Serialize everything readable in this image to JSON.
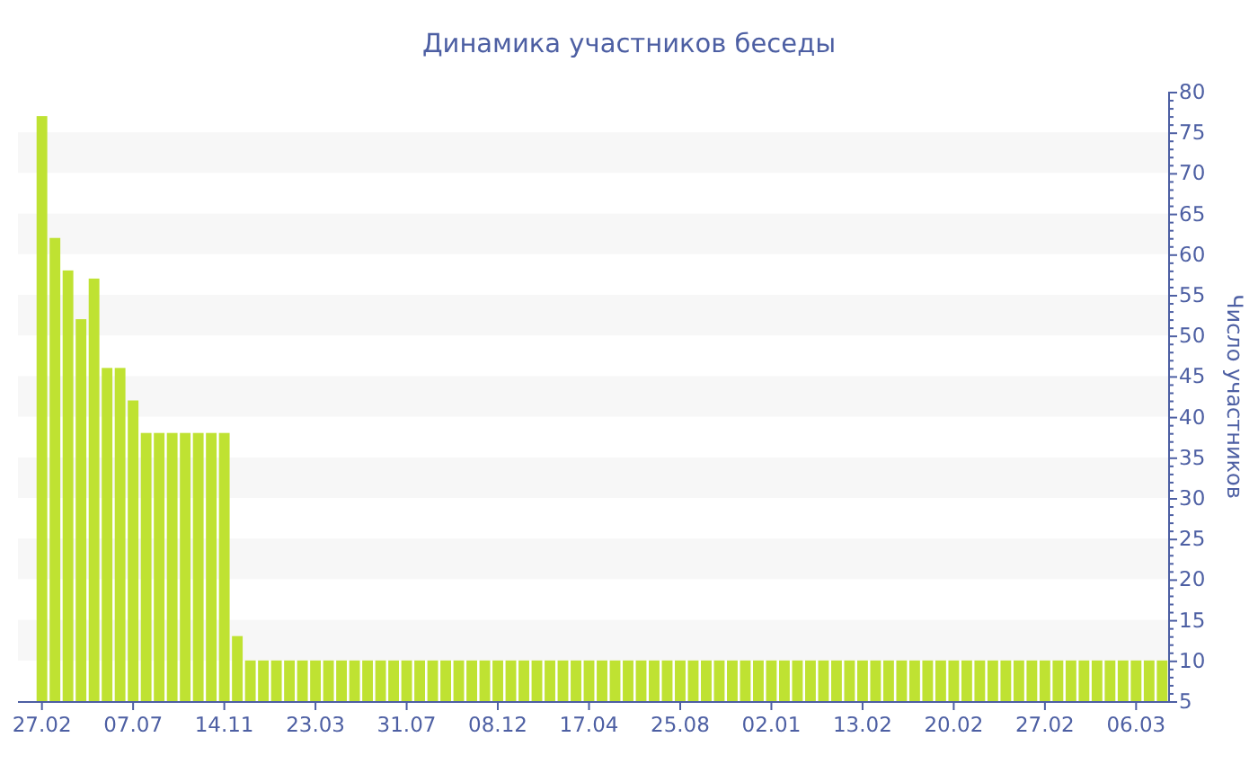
{
  "chart_data": {
    "type": "bar",
    "title": "Динамика участников беседы",
    "ylabel": "Число участников",
    "categories": [
      "27.02",
      null,
      null,
      null,
      null,
      null,
      null,
      "07.07",
      null,
      null,
      null,
      null,
      null,
      null,
      "14.11",
      null,
      null,
      null,
      null,
      null,
      null,
      "23.03",
      null,
      null,
      null,
      null,
      null,
      null,
      "31.07",
      null,
      null,
      null,
      null,
      null,
      null,
      "08.12",
      null,
      null,
      null,
      null,
      null,
      null,
      "17.04",
      null,
      null,
      null,
      null,
      null,
      null,
      "25.08",
      null,
      null,
      null,
      null,
      null,
      null,
      "02.01",
      null,
      null,
      null,
      null,
      null,
      null,
      "13.02",
      null,
      null,
      null,
      null,
      null,
      null,
      "20.02",
      null,
      null,
      null,
      null,
      null,
      null,
      "27.02",
      null,
      null,
      null,
      null,
      null,
      null,
      "06.03",
      null,
      null
    ],
    "values": [
      77,
      62,
      58,
      52,
      57,
      46,
      46,
      42,
      38,
      38,
      38,
      38,
      38,
      38,
      38,
      13,
      10,
      10,
      10,
      10,
      10,
      10,
      10,
      10,
      10,
      10,
      10,
      10,
      10,
      10,
      10,
      10,
      10,
      10,
      10,
      10,
      10,
      10,
      10,
      10,
      10,
      10,
      10,
      10,
      10,
      10,
      10,
      10,
      10,
      10,
      10,
      10,
      10,
      10,
      10,
      10,
      10,
      10,
      10,
      10,
      10,
      10,
      10,
      10,
      10,
      10,
      10,
      10,
      10,
      10,
      10,
      10,
      10,
      10,
      10,
      10,
      10,
      10,
      10,
      10,
      10,
      10,
      10,
      10,
      10,
      10,
      10
    ],
    "color": "#bfe232",
    "ylim": [
      5,
      80
    ],
    "yticks": [
      5,
      {
        "value": 6,
        "label": null
      },
      {
        "value": 7,
        "label": null
      },
      {
        "value": 8,
        "label": null
      },
      {
        "value": 9,
        "label": null
      },
      10,
      {
        "value": 11,
        "label": null
      },
      {
        "value": 12,
        "label": null
      },
      {
        "value": 13,
        "label": null
      },
      {
        "value": 14,
        "label": null
      },
      15,
      {
        "value": 16,
        "label": null
      },
      {
        "value": 17,
        "label": null
      },
      {
        "value": 18,
        "label": null
      },
      {
        "value": 19,
        "label": null
      },
      20,
      {
        "value": 21,
        "label": null
      },
      {
        "value": 22,
        "label": null
      },
      {
        "value": 23,
        "label": null
      },
      {
        "value": 24,
        "label": null
      },
      25,
      {
        "value": 26,
        "label": null
      },
      {
        "value": 27,
        "label": null
      },
      {
        "value": 28,
        "label": null
      },
      {
        "value": 29,
        "label": null
      },
      30,
      {
        "value": 31,
        "label": null
      },
      {
        "value": 32,
        "label": null
      },
      {
        "value": 33,
        "label": null
      },
      {
        "value": 34,
        "label": null
      },
      35,
      {
        "value": 36,
        "label": null
      },
      {
        "value": 37,
        "label": null
      },
      {
        "value": 38,
        "label": null
      },
      {
        "value": 39,
        "label": null
      },
      40,
      {
        "value": 41,
        "label": null
      },
      {
        "value": 42,
        "label": null
      },
      {
        "value": 43,
        "label": null
      },
      {
        "value": 44,
        "label": null
      },
      45,
      {
        "value": 46,
        "label": null
      },
      {
        "value": 47,
        "label": null
      },
      {
        "value": 48,
        "label": null
      },
      {
        "value": 49,
        "label": null
      },
      50,
      {
        "value": 51,
        "label": null
      },
      {
        "value": 52,
        "label": null
      },
      {
        "value": 53,
        "label": null
      },
      {
        "value": 54,
        "label": null
      },
      55,
      {
        "value": 56,
        "label": null
      },
      {
        "value": 57,
        "label": null
      },
      {
        "value": 58,
        "label": null
      },
      {
        "value": 59,
        "label": null
      },
      60,
      {
        "value": 61,
        "label": null
      },
      {
        "value": 62,
        "label": null
      },
      {
        "value": 63,
        "label": null
      },
      {
        "value": 64,
        "label": null
      },
      65,
      {
        "value": 66,
        "label": null
      },
      {
        "value": 67,
        "label": null
      },
      {
        "value": 68,
        "label": null
      },
      {
        "value": 69,
        "label": null
      },
      70,
      {
        "value": 71,
        "label": null
      },
      {
        "value": 72,
        "label": null
      },
      {
        "value": 73,
        "label": null
      },
      {
        "value": 74,
        "label": null
      },
      75,
      {
        "value": 76,
        "label": null
      },
      {
        "value": 77,
        "label": null
      },
      {
        "value": 78,
        "label": null
      },
      {
        "value": 79,
        "label": null
      },
      80
    ],
    "bands": [
      {
        "axis": "y",
        "from": 10,
        "to": 15,
        "color": "#f7f7f7"
      },
      {
        "axis": "y",
        "from": 20,
        "to": 25,
        "color": "#f7f7f7"
      },
      {
        "axis": "y",
        "from": 30,
        "to": 35,
        "color": "#f7f7f7"
      },
      {
        "axis": "y",
        "from": 40,
        "to": 45,
        "color": "#f7f7f7"
      },
      {
        "axis": "y",
        "from": 50,
        "to": 55,
        "color": "#f7f7f7"
      },
      {
        "axis": "y",
        "from": 60,
        "to": 65,
        "color": "#f7f7f7"
      },
      {
        "axis": "y",
        "from": 70,
        "to": 75,
        "color": "#f7f7f7"
      }
    ]
  }
}
